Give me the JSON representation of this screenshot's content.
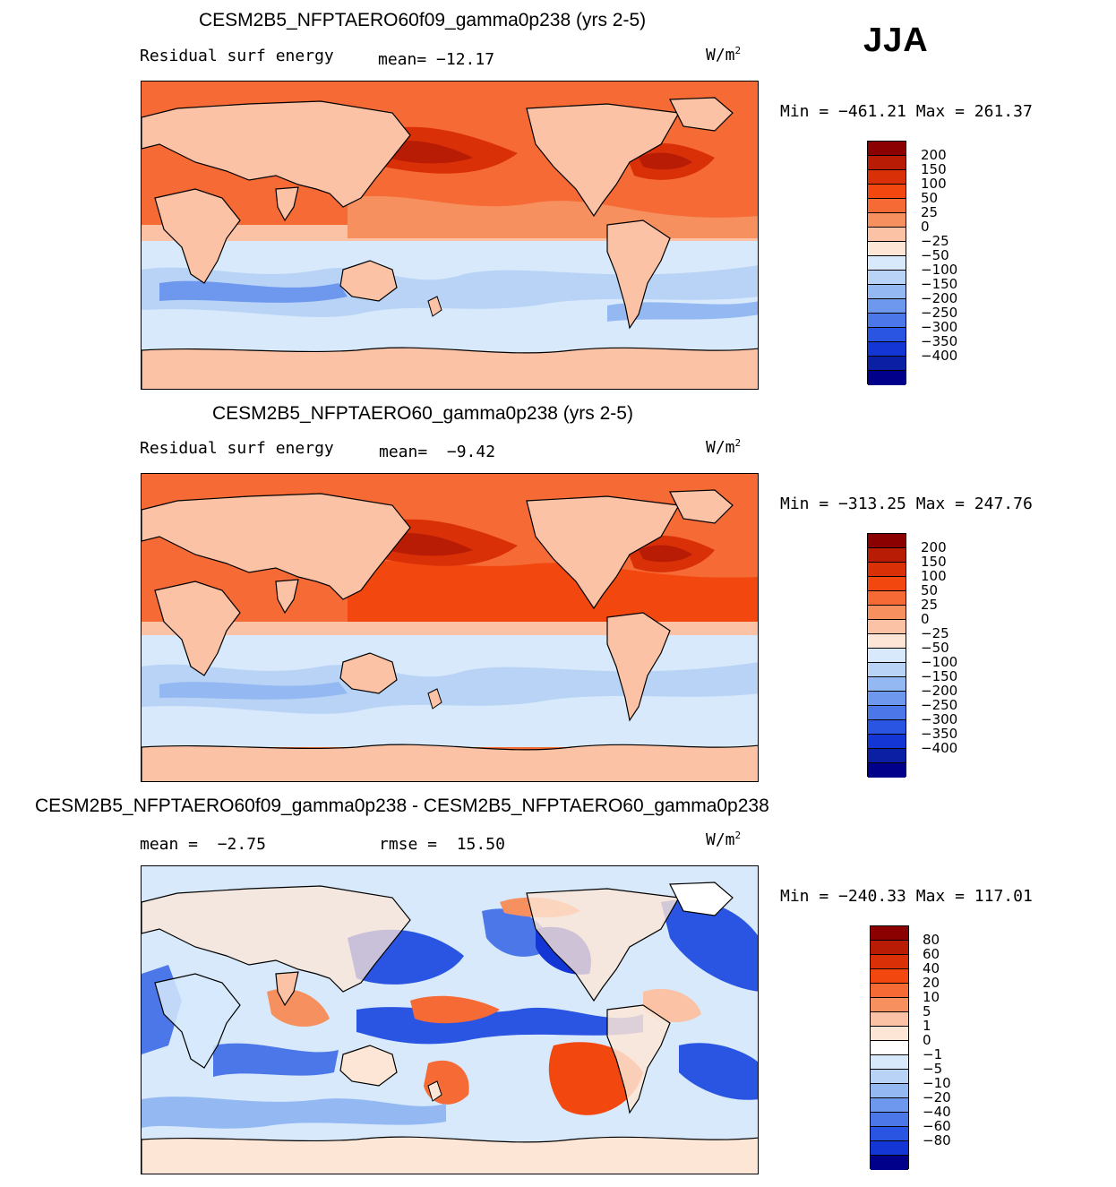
{
  "season": "JJA",
  "units_base": "W/m",
  "units_exp": "2",
  "panels": [
    {
      "title": "CESM2B5_NFPTAERO60f09_gamma0p238 (yrs 2-5)",
      "variable": "Residual surf energy",
      "mean_label": "mean=",
      "mean_value": "−12.17",
      "min_label": "Min =",
      "min_value": "−461.21",
      "max_label": "Max =",
      "max_value": "261.37",
      "colorbar_labels": [
        "200",
        "150",
        "100",
        "50",
        "25",
        "0",
        "−25",
        "−50",
        "−100",
        "−150",
        "−200",
        "−250",
        "−300",
        "−350",
        "−400"
      ]
    },
    {
      "title": "CESM2B5_NFPTAERO60_gamma0p238 (yrs 2-5)",
      "variable": "Residual surf energy",
      "mean_label": "mean=",
      "mean_value": "−9.42",
      "min_label": "Min =",
      "min_value": "−313.25",
      "max_label": "Max =",
      "max_value": "247.76",
      "colorbar_labels": [
        "200",
        "150",
        "100",
        "50",
        "25",
        "0",
        "−25",
        "−50",
        "−100",
        "−150",
        "−200",
        "−250",
        "−300",
        "−350",
        "−400"
      ]
    },
    {
      "title": "CESM2B5_NFPTAERO60f09_gamma0p238 - CESM2B5_NFPTAERO60_gamma0p238",
      "mean_label": "mean =",
      "mean_value": "−2.75",
      "rmse_label": "rmse =",
      "rmse_value": "15.50",
      "min_label": "Min =",
      "min_value": "−240.33",
      "max_label": "Max =",
      "max_value": "117.01",
      "colorbar_labels": [
        "80",
        "60",
        "40",
        "20",
        "10",
        "5",
        "1",
        "0",
        "−1",
        "−5",
        "−10",
        "−20",
        "−40",
        "−60",
        "−80"
      ]
    }
  ],
  "colors": {
    "abs_scale": [
      "#8b0000",
      "#b81c04",
      "#d93008",
      "#f2470f",
      "#f56a35",
      "#f7905f",
      "#fbc2a6",
      "#fde6d6",
      "#d7e9fb",
      "#b8d3f6",
      "#93b8f2",
      "#6d98ed",
      "#4b77e8",
      "#2a55e2",
      "#1436d4",
      "#0a1fa3",
      "#00008b"
    ],
    "diff_scale": [
      "#8b0000",
      "#b81c04",
      "#d93008",
      "#f2470f",
      "#f56a35",
      "#f7905f",
      "#fbc2a6",
      "#fde6d6",
      "#ffffff",
      "#d7e9fb",
      "#b8d3f6",
      "#93b8f2",
      "#6d98ed",
      "#4b77e8",
      "#2a55e2",
      "#1436d4",
      "#00008b"
    ]
  }
}
